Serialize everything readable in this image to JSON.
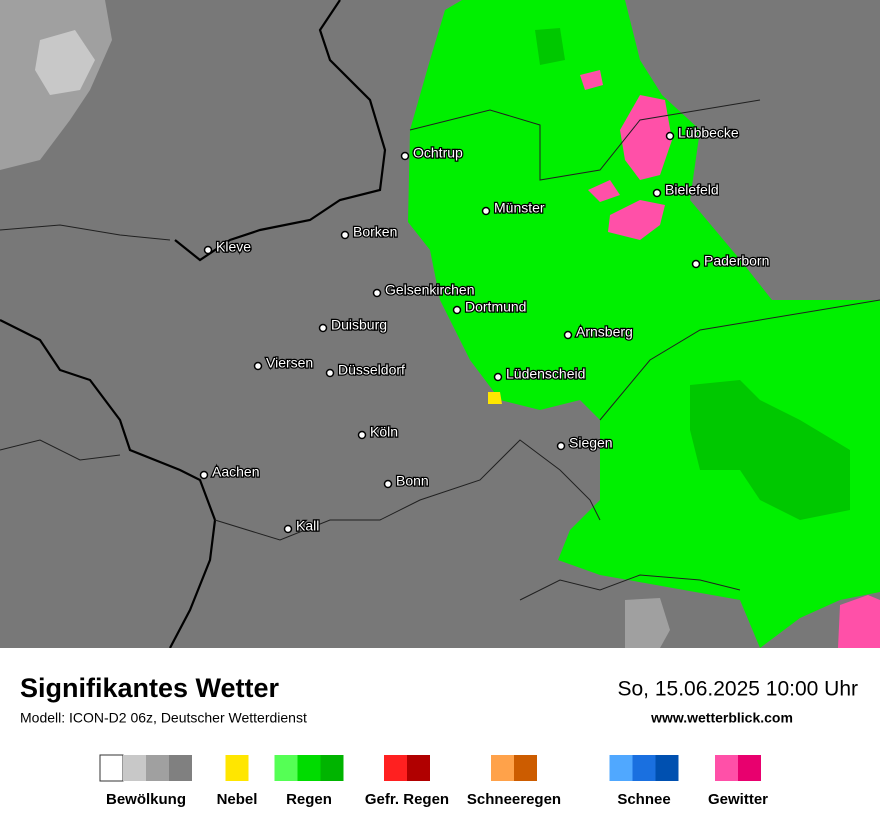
{
  "header": {
    "title": "Signifikantes Wetter",
    "model": "Modell: ICON-D2 06z, Deutscher Wetterdienst",
    "datetime": "So, 15.06.2025 10:00 Uhr",
    "website": "www.wetterblick.com"
  },
  "cities": [
    "Ochtrup",
    "Münster",
    "Lübbecke",
    "Bielefeld",
    "Borken",
    "Kleve",
    "Paderborn",
    "Gelsenkirchen",
    "Dortmund",
    "Duisburg",
    "Arnsberg",
    "Viersen",
    "Düsseldorf",
    "Lüdenscheid",
    "Köln",
    "Siegen",
    "Aachen",
    "Bonn",
    "Kall"
  ],
  "legend": [
    {
      "label": "Bewölkung",
      "colors": [
        "#ffffff",
        "#c8c8c8",
        "#a0a0a0",
        "#808080"
      ]
    },
    {
      "label": "Nebel",
      "colors": [
        "#ffe600"
      ]
    },
    {
      "label": "Regen",
      "colors": [
        "#55ff55",
        "#00dc00",
        "#00b400"
      ]
    },
    {
      "label": "Gefr. Regen",
      "colors": [
        "#ff2020",
        "#b00000"
      ]
    },
    {
      "label": "Schneeregen",
      "colors": [
        "#ffa24a",
        "#cc5c00"
      ]
    },
    {
      "label": "Schnee",
      "colors": [
        "#50a8ff",
        "#1a70e0",
        "#0050b0"
      ]
    },
    {
      "label": "Gewitter",
      "colors": [
        "#ff50a8",
        "#e8006e"
      ]
    }
  ]
}
